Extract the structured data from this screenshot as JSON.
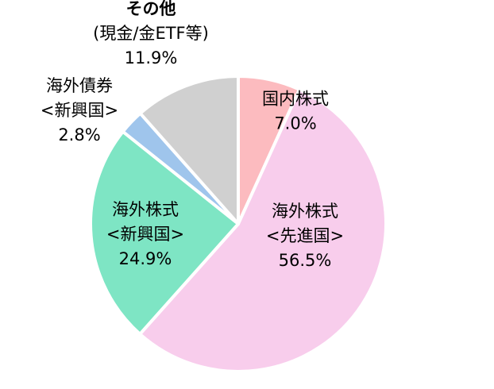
{
  "chart_data": {
    "type": "pie",
    "start_angle_deg": 0,
    "direction": "clockwise",
    "legend": "none",
    "slices": [
      {
        "name": "国内株式",
        "value": 7.0,
        "value_label": "7.0%",
        "color": "#FCBBBF",
        "label_lines": [
          "国内株式",
          "7.0%"
        ]
      },
      {
        "name": "海外株式<先進国>",
        "value": 56.5,
        "value_label": "56.5%",
        "color": "#F8CDEC",
        "label_lines": [
          "海外株式",
          "<先進国>",
          "56.5%"
        ]
      },
      {
        "name": "海外株式<新興国>",
        "value": 24.9,
        "value_label": "24.9%",
        "color": "#7EE5C4",
        "label_lines": [
          "海外株式",
          "<新興国>",
          "24.9%"
        ]
      },
      {
        "name": "海外債券<新興国>",
        "value": 2.8,
        "value_label": "2.8%",
        "color": "#9FC5EC",
        "label_lines": [
          "海外債券",
          "<新興国>",
          "2.8%"
        ]
      },
      {
        "name": "その他(現金/金ETF等)",
        "value": 11.9,
        "value_label": "11.9%",
        "color": "#D0D0D0",
        "label_lines": [
          "その他",
          "(現金/金ETF等)",
          "11.9%"
        ]
      }
    ]
  }
}
